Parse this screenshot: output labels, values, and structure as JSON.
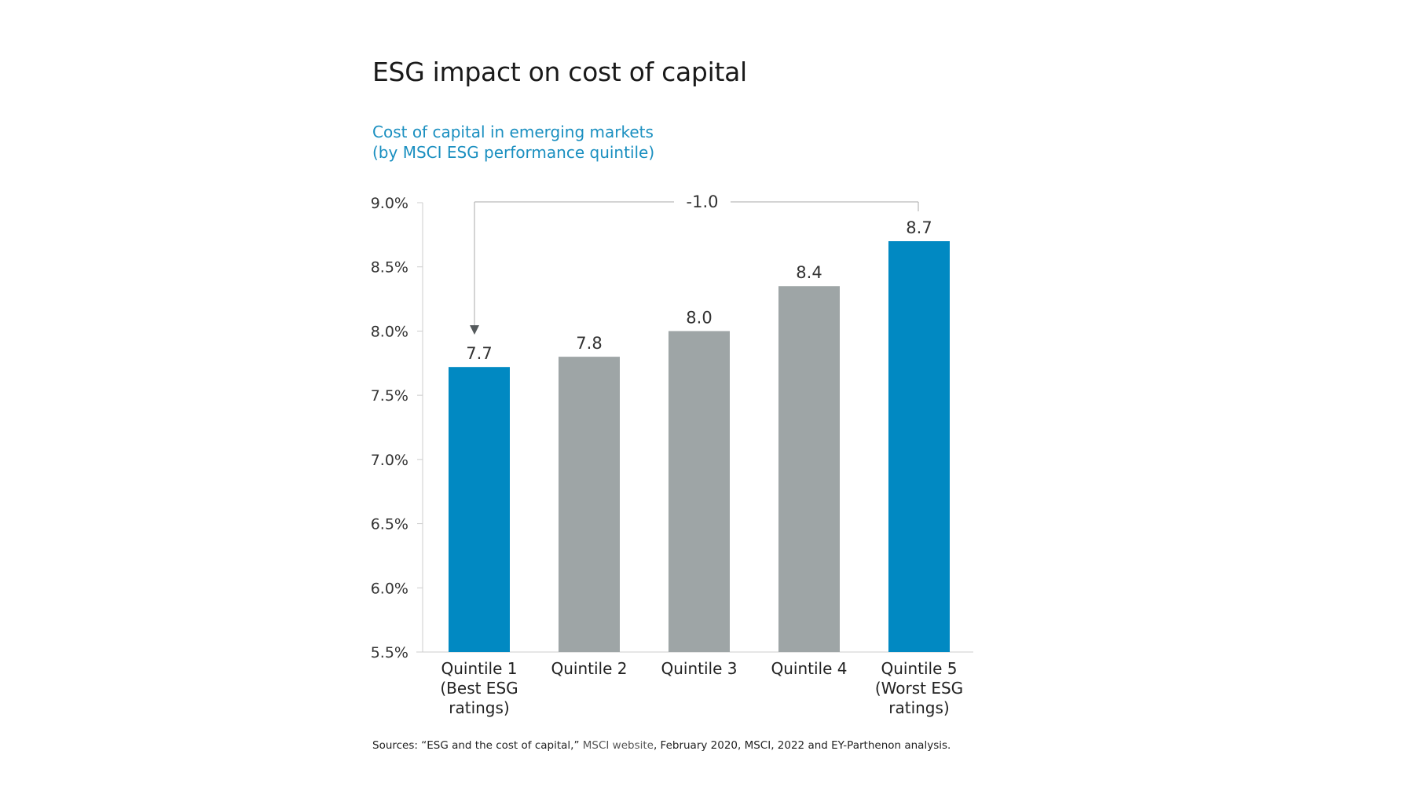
{
  "title": "ESG impact on cost of capital",
  "subtitle_line1": "Cost of capital in emerging markets",
  "subtitle_line2": "(by MSCI ESG performance quintile)",
  "sources": {
    "prefix": "Sources: “ESG and the cost of capital,” ",
    "link": "MSCI website",
    "suffix": ", February 2020, MSCI, 2022 and EY-Parthenon analysis."
  },
  "colors": {
    "highlight": "#0189c2",
    "neutral": "#9ea5a6",
    "title": "#1a1a1a",
    "subtitle": "#1a8fc0",
    "axis": "#cccccc",
    "annotation": "#555a5c"
  },
  "chart_data": {
    "type": "bar",
    "title": "ESG impact on cost of capital",
    "subtitle": "Cost of capital in emerging markets (by MSCI ESG performance quintile)",
    "xlabel": "",
    "ylabel": "",
    "ylim": [
      5.5,
      9.0
    ],
    "yticks": [
      5.5,
      6.0,
      6.5,
      7.0,
      7.5,
      8.0,
      8.5,
      9.0
    ],
    "ytick_labels": [
      "5.5%",
      "6.0%",
      "6.5%",
      "7.0%",
      "7.5%",
      "8.0%",
      "8.5%",
      "9.0%"
    ],
    "grid": false,
    "categories": [
      [
        "Quintile 1",
        "(Best ESG",
        "ratings)"
      ],
      [
        "Quintile 2"
      ],
      [
        "Quintile 3"
      ],
      [
        "Quintile 4"
      ],
      [
        "Quintile 5",
        "(Worst ESG",
        "ratings)"
      ]
    ],
    "values": [
      7.72,
      7.8,
      8.0,
      8.35,
      8.7
    ],
    "data_labels": [
      "7.7",
      "7.8",
      "8.0",
      "8.4",
      "8.7"
    ],
    "highlighted": [
      true,
      false,
      false,
      false,
      true
    ],
    "annotation": {
      "label": "-1.0",
      "from_category": 4,
      "to_category": 0,
      "description": "Difference between Quintile 5 and Quintile 1"
    }
  }
}
